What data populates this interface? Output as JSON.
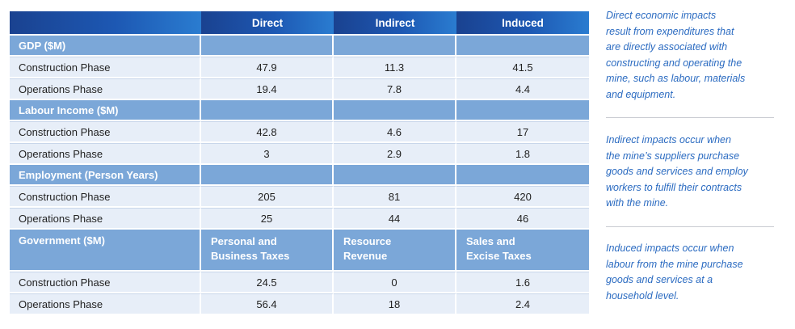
{
  "table": {
    "headers": [
      "",
      "Direct",
      "Indirect",
      "Induced"
    ],
    "sections": [
      {
        "title": "GDP ($M)",
        "rows": [
          {
            "label": "Construction Phase",
            "values": [
              "47.9",
              "11.3",
              "41.5"
            ]
          },
          {
            "label": "Operations Phase",
            "values": [
              "19.4",
              "7.8",
              "4.4"
            ]
          }
        ]
      },
      {
        "title": "Labour Income ($M)",
        "rows": [
          {
            "label": "Construction Phase",
            "values": [
              "42.8",
              "4.6",
              "17"
            ]
          },
          {
            "label": "Operations Phase",
            "values": [
              "3",
              "2.9",
              "1.8"
            ]
          }
        ]
      },
      {
        "title": "Employment (Person Years)",
        "rows": [
          {
            "label": "Construction Phase",
            "values": [
              "205",
              "81",
              "420"
            ]
          },
          {
            "label": "Operations Phase",
            "values": [
              "25",
              "44",
              "46"
            ]
          }
        ]
      },
      {
        "title": "Government ($M)",
        "subheaders": [
          [
            "Personal and",
            "Business Taxes"
          ],
          [
            "Resource",
            "Revenue"
          ],
          [
            "Sales and",
            "Excise Taxes"
          ]
        ],
        "rows": [
          {
            "label": "Construction Phase",
            "values": [
              "24.5",
              "0",
              "1.6"
            ]
          },
          {
            "label": "Operations Phase",
            "values": [
              "56.4",
              "18",
              "2.4"
            ]
          }
        ]
      }
    ]
  },
  "sidebar": {
    "notes": [
      [
        "Direct economic impacts",
        "result from expenditures that",
        "are directly associated with",
        "constructing and operating the",
        "mine, such as labour, materials",
        "and equipment."
      ],
      [
        "Indirect impacts occur when",
        "the mine’s suppliers purchase",
        "goods and services and employ",
        "workers to fulfill their contracts",
        "with the mine."
      ],
      [
        "Induced impacts occur when",
        "labour from the mine purchase",
        "goods and services at a",
        "household level."
      ]
    ]
  }
}
